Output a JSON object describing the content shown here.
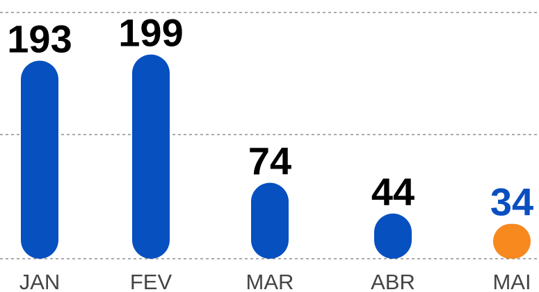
{
  "chart_data": {
    "type": "bar",
    "categories": [
      "JAN",
      "FEV",
      "MAR",
      "ABR",
      "MAI"
    ],
    "values": [
      193,
      199,
      74,
      44,
      34
    ],
    "colors": [
      "#0650c0",
      "#0650c0",
      "#0650c0",
      "#0650c0",
      "#f7891f"
    ],
    "value_label_colors": [
      "#000000",
      "#000000",
      "#000000",
      "#000000",
      "#0a4fc0"
    ],
    "ylim": [
      0,
      240
    ]
  }
}
